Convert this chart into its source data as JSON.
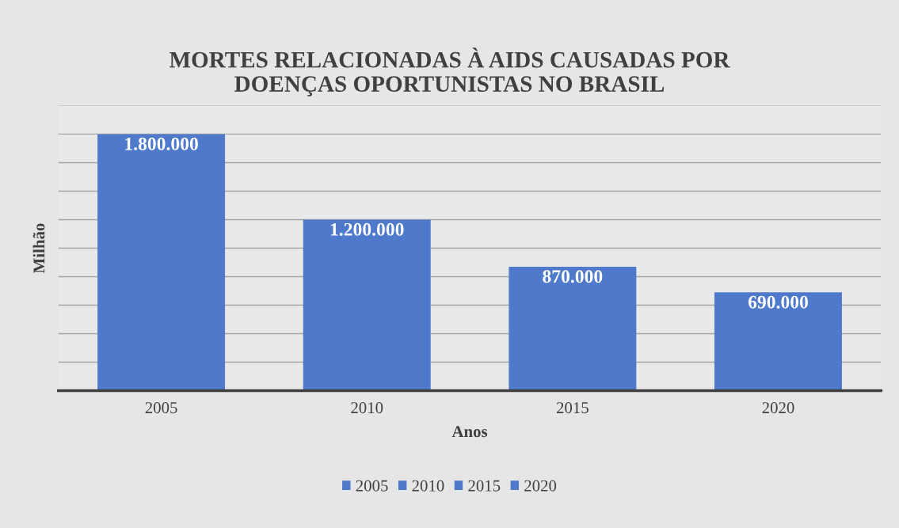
{
  "chart_data": {
    "type": "bar",
    "title": "MORTES RELACIONADAS À AIDS CAUSADAS POR\nDOENÇAS OPORTUNISTAS NO BRASIL",
    "xlabel": "Anos",
    "ylabel": "Milhão",
    "categories": [
      "2005",
      "2010",
      "2015",
      "2020"
    ],
    "series": [
      {
        "name": "2005",
        "color": "#4f7acb",
        "values": [
          1800000,
          null,
          null,
          null
        ],
        "value_labels": [
          "1.800.000",
          null,
          null,
          null
        ]
      },
      {
        "name": "2010",
        "color": "#4f7acb",
        "values": [
          null,
          1200000,
          null,
          null
        ],
        "value_labels": [
          null,
          "1.200.000",
          null,
          null
        ]
      },
      {
        "name": "2015",
        "color": "#4f7acb",
        "values": [
          null,
          null,
          870000,
          null
        ],
        "value_labels": [
          null,
          null,
          "870.000",
          null
        ]
      },
      {
        "name": "2020",
        "color": "#4f7acb",
        "values": [
          null,
          null,
          null,
          690000
        ],
        "value_labels": [
          null,
          null,
          null,
          "690.000"
        ]
      }
    ],
    "ylim": [
      0,
      2000000
    ],
    "yticks": [
      {
        "value": 0,
        "label": null
      },
      {
        "value": 200000,
        "label": null
      },
      {
        "value": 400000,
        "label": null
      },
      {
        "value": 600000,
        "label": null
      },
      {
        "value": 800000,
        "label": null
      },
      {
        "value": 1000000,
        "label": null
      },
      {
        "value": 1200000,
        "label": null
      },
      {
        "value": 1400000,
        "label": null
      },
      {
        "value": 1600000,
        "label": null
      },
      {
        "value": 1800000,
        "label": null
      },
      {
        "value": 2000000,
        "label": null
      }
    ],
    "grid": "y",
    "legend": "bottom"
  }
}
